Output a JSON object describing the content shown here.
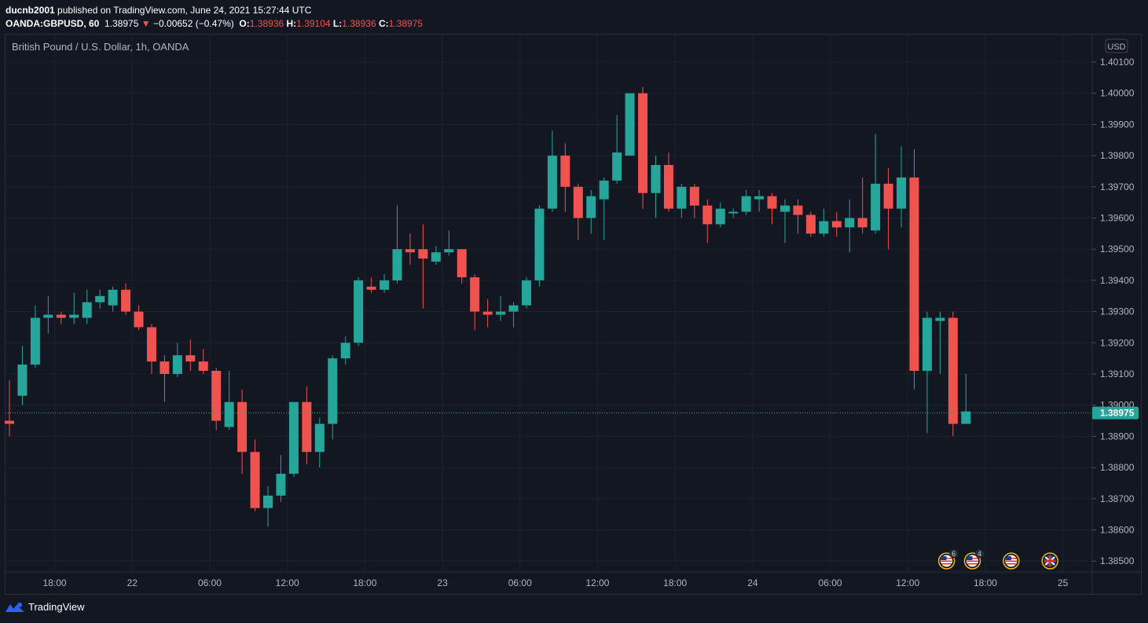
{
  "header": {
    "publisher": "ducnb2001",
    "published_text": "published on TradingView.com, June 24, 2021 15:27:44 UTC",
    "symbol": "OANDA:GBPUSD, 60",
    "last": "1.38975",
    "arrow": "▼",
    "change": "−0.00652 (−0.47%)",
    "o_label": "O:",
    "o_value": "1.38936",
    "h_label": "H:",
    "h_value": "1.39104",
    "l_label": "L:",
    "l_value": "1.38936",
    "c_label": "C:",
    "c_value": "1.38975"
  },
  "footer": {
    "brand": "TradingView"
  },
  "colors": {
    "up": "#26a69a",
    "down": "#ef5350",
    "background": "#131722",
    "grid": "#1e222d",
    "text": "#b2b5be"
  },
  "chart_data": {
    "type": "candlestick",
    "title": "British Pound / U.S. Dollar, 1h, OANDA",
    "currency": "USD",
    "last_price": 1.38975,
    "last_price_label": "1.38975",
    "ylim": [
      1.3846,
      1.4022
    ],
    "y_ticks": [
      "1.40100",
      "1.40000",
      "1.39900",
      "1.39800",
      "1.39700",
      "1.39600",
      "1.39500",
      "1.39400",
      "1.39300",
      "1.39200",
      "1.39100",
      "1.39000",
      "1.38900",
      "1.38800",
      "1.38700",
      "1.38600",
      "1.38500"
    ],
    "x_ticks": [
      {
        "label": "18:00",
        "bar": 3.5
      },
      {
        "label": "22",
        "bar": 9.5
      },
      {
        "label": "06:00",
        "bar": 15.5
      },
      {
        "label": "12:00",
        "bar": 21.5
      },
      {
        "label": "18:00",
        "bar": 27.5
      },
      {
        "label": "23",
        "bar": 33.5
      },
      {
        "label": "06:00",
        "bar": 39.5
      },
      {
        "label": "12:00",
        "bar": 45.5
      },
      {
        "label": "18:00",
        "bar": 51.5
      },
      {
        "label": "24",
        "bar": 57.5
      },
      {
        "label": "06:00",
        "bar": 63.5
      },
      {
        "label": "12:00",
        "bar": 69.5
      },
      {
        "label": "18:00",
        "bar": 75.5
      },
      {
        "label": "25",
        "bar": 81.5
      }
    ],
    "events": [
      {
        "bar": 72.5,
        "flag": "us",
        "count": "6"
      },
      {
        "bar": 74.5,
        "flag": "us",
        "count": "4"
      },
      {
        "bar": 77.5,
        "flag": "us",
        "count": ""
      },
      {
        "bar": 80.5,
        "flag": "uk",
        "count": ""
      }
    ],
    "candles": [
      [
        1.3895,
        1.3908,
        1.3894,
        1.389
      ],
      [
        1.3903,
        1.3919,
        1.3913,
        1.39
      ],
      [
        1.3913,
        1.3932,
        1.3928,
        1.3912
      ],
      [
        1.3928,
        1.3935,
        1.3929,
        1.3923
      ],
      [
        1.3929,
        1.393,
        1.3928,
        1.3926
      ],
      [
        1.3928,
        1.3936,
        1.3929,
        1.3926
      ],
      [
        1.3928,
        1.3937,
        1.3933,
        1.3926
      ],
      [
        1.3933,
        1.3937,
        1.3935,
        1.3931
      ],
      [
        1.3932,
        1.3938,
        1.3937,
        1.393
      ],
      [
        1.3937,
        1.3939,
        1.393,
        1.3929
      ],
      [
        1.393,
        1.3932,
        1.3925,
        1.3924
      ],
      [
        1.3925,
        1.3926,
        1.3914,
        1.391
      ],
      [
        1.3914,
        1.3916,
        1.391,
        1.3901
      ],
      [
        1.391,
        1.392,
        1.3916,
        1.3909
      ],
      [
        1.3916,
        1.3921,
        1.3914,
        1.3911
      ],
      [
        1.3914,
        1.3918,
        1.3911,
        1.391
      ],
      [
        1.3911,
        1.3912,
        1.3895,
        1.3892
      ],
      [
        1.3893,
        1.3911,
        1.3901,
        1.3892
      ],
      [
        1.3901,
        1.3905,
        1.3885,
        1.3878
      ],
      [
        1.3885,
        1.3889,
        1.3867,
        1.3866
      ],
      [
        1.3867,
        1.3874,
        1.3871,
        1.3861
      ],
      [
        1.3871,
        1.3884,
        1.3878,
        1.3869
      ],
      [
        1.3878,
        1.3899,
        1.3901,
        1.3877
      ],
      [
        1.3901,
        1.3906,
        1.3885,
        1.3881
      ],
      [
        1.3885,
        1.3896,
        1.3894,
        1.388
      ],
      [
        1.3894,
        1.3916,
        1.3915,
        1.3889
      ],
      [
        1.3915,
        1.3922,
        1.392,
        1.3913
      ],
      [
        1.392,
        1.3941,
        1.394,
        1.3919
      ],
      [
        1.3938,
        1.3941,
        1.3937,
        1.3936
      ],
      [
        1.3937,
        1.3942,
        1.394,
        1.3936
      ],
      [
        1.394,
        1.3964,
        1.395,
        1.3939
      ],
      [
        1.395,
        1.3955,
        1.3949,
        1.3945
      ],
      [
        1.395,
        1.3958,
        1.3947,
        1.3931
      ],
      [
        1.3946,
        1.3951,
        1.3949,
        1.3945
      ],
      [
        1.3949,
        1.3956,
        1.395,
        1.3948
      ],
      [
        1.395,
        1.395,
        1.3941,
        1.3939
      ],
      [
        1.3941,
        1.3942,
        1.393,
        1.3924
      ],
      [
        1.393,
        1.3934,
        1.3929,
        1.3925
      ],
      [
        1.3929,
        1.3935,
        1.393,
        1.3927
      ],
      [
        1.393,
        1.3933,
        1.3932,
        1.3925
      ],
      [
        1.3932,
        1.3941,
        1.394,
        1.3931
      ],
      [
        1.394,
        1.3964,
        1.3963,
        1.3938
      ],
      [
        1.3963,
        1.3988,
        1.398,
        1.3962
      ],
      [
        1.398,
        1.3984,
        1.397,
        1.3962
      ],
      [
        1.397,
        1.3971,
        1.396,
        1.3953
      ],
      [
        1.396,
        1.3969,
        1.3967,
        1.3955
      ],
      [
        1.3966,
        1.3973,
        1.3972,
        1.3953
      ],
      [
        1.3972,
        1.3993,
        1.3981,
        1.3971
      ],
      [
        1.398,
        1.4,
        1.4,
        1.398
      ],
      [
        1.4,
        1.4002,
        1.3968,
        1.3963
      ],
      [
        1.3968,
        1.398,
        1.3977,
        1.396
      ],
      [
        1.3977,
        1.3981,
        1.3963,
        1.3962
      ],
      [
        1.3963,
        1.3971,
        1.397,
        1.396
      ],
      [
        1.397,
        1.3971,
        1.3964,
        1.396
      ],
      [
        1.3964,
        1.3966,
        1.3958,
        1.3952
      ],
      [
        1.3958,
        1.3965,
        1.3963,
        1.3957
      ],
      [
        1.3962,
        1.3963,
        1.3962,
        1.396
      ],
      [
        1.3962,
        1.3969,
        1.3967,
        1.3961
      ],
      [
        1.3966,
        1.3969,
        1.3967,
        1.3962
      ],
      [
        1.3967,
        1.3968,
        1.3963,
        1.3958
      ],
      [
        1.3962,
        1.3966,
        1.3964,
        1.3952
      ],
      [
        1.3964,
        1.3966,
        1.3961,
        1.3955
      ],
      [
        1.3961,
        1.3962,
        1.3955,
        1.3954
      ],
      [
        1.3955,
        1.3963,
        1.3959,
        1.3954
      ],
      [
        1.3959,
        1.3962,
        1.3957,
        1.3954
      ],
      [
        1.3957,
        1.3966,
        1.396,
        1.3949
      ],
      [
        1.396,
        1.3973,
        1.3957,
        1.3955
      ],
      [
        1.3956,
        1.3987,
        1.3971,
        1.3955
      ],
      [
        1.3971,
        1.3976,
        1.3963,
        1.395
      ],
      [
        1.3963,
        1.3983,
        1.3973,
        1.3957
      ],
      [
        1.3973,
        1.3982,
        1.3911,
        1.3905
      ],
      [
        1.3911,
        1.393,
        1.3928,
        1.3891
      ],
      [
        1.3927,
        1.393,
        1.3928,
        1.391
      ],
      [
        1.3928,
        1.393,
        1.3894,
        1.389
      ],
      [
        1.3894,
        1.391,
        1.3898,
        1.3894
      ]
    ]
  }
}
